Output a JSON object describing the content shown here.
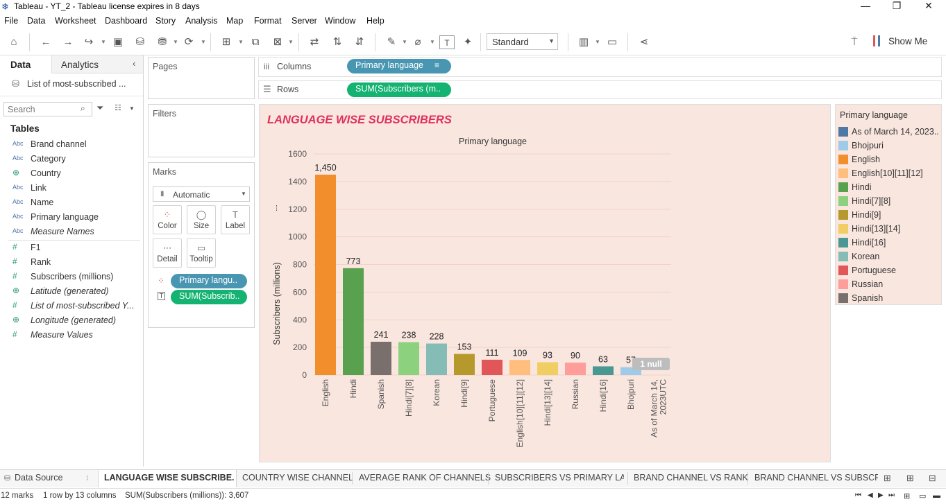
{
  "window": {
    "title": "Tableau - YT_2 - Tableau license expires in 8 days",
    "minimize": "—",
    "restore": "❐",
    "close": "✕"
  },
  "menu": [
    "File",
    "Data",
    "Worksheet",
    "Dashboard",
    "Story",
    "Analysis",
    "Map",
    "Format",
    "Server",
    "Window",
    "Help"
  ],
  "toolbar": {
    "fit": "Standard",
    "show_me": "Show Me"
  },
  "left": {
    "tab_data": "Data",
    "tab_analytics": "Analytics",
    "datasource": "List of most-subscribed ...",
    "search_placeholder": "Search",
    "tables_label": "Tables",
    "dimensions": [
      {
        "type": "Abc",
        "name": "Brand channel",
        "italic": false
      },
      {
        "type": "Abc",
        "name": "Category",
        "italic": false
      },
      {
        "type": "geo",
        "name": "Country",
        "italic": false
      },
      {
        "type": "Abc",
        "name": "Link",
        "italic": false
      },
      {
        "type": "Abc",
        "name": "Name",
        "italic": false
      },
      {
        "type": "Abc",
        "name": "Primary language",
        "italic": false
      },
      {
        "type": "Abc",
        "name": "Measure Names",
        "italic": true
      }
    ],
    "measures": [
      {
        "type": "#",
        "name": "F1",
        "italic": false
      },
      {
        "type": "#",
        "name": "Rank",
        "italic": false
      },
      {
        "type": "#",
        "name": "Subscribers (millions)",
        "italic": false
      },
      {
        "type": "geo",
        "name": "Latitude (generated)",
        "italic": true
      },
      {
        "type": "#",
        "name": "List of most-subscribed Y...",
        "italic": true
      },
      {
        "type": "geo",
        "name": "Longitude (generated)",
        "italic": true
      },
      {
        "type": "#",
        "name": "Measure Values",
        "italic": true
      }
    ]
  },
  "shelves": {
    "pages": "Pages",
    "filters": "Filters",
    "marks": "Marks",
    "mark_type": "Automatic",
    "mark_buttons": {
      "color": "Color",
      "size": "Size",
      "label": "Label",
      "detail": "Detail",
      "tooltip": "Tooltip"
    },
    "mark_pills": {
      "color": "Primary langu..",
      "label": "SUM(Subscrib.."
    },
    "columns_label": "Columns",
    "rows_label": "Rows",
    "columns_pill": "Primary language",
    "rows_pill": "SUM(Subscribers (m.."
  },
  "chart_data": {
    "type": "bar",
    "title": "LANGUAGE WISE SUBSCRIBERS",
    "header": "Primary language",
    "ylabel": "Subscribers (millions)",
    "ylim": [
      0,
      1600
    ],
    "yticks": [
      0,
      200,
      400,
      600,
      800,
      1000,
      1200,
      1400,
      1600
    ],
    "categories": [
      "English",
      "Hindi",
      "Spanish",
      "Hindi[7][8]",
      "Korean",
      "Hindi[9]",
      "Portuguese",
      "English[10][11][12]",
      "Hindi[13][14]",
      "Russian",
      "Hindi[16]",
      "Bhojpuri",
      "As of March 14, 2023UTC"
    ],
    "category_lines": [
      [
        "English"
      ],
      [
        "Hindi"
      ],
      [
        "Spanish"
      ],
      [
        "Hindi[7][8]"
      ],
      [
        "Korean"
      ],
      [
        "Hindi[9]"
      ],
      [
        "Portuguese"
      ],
      [
        "English[10][11][12]"
      ],
      [
        "Hindi[13][14]"
      ],
      [
        "Russian"
      ],
      [
        "Hindi[16]"
      ],
      [
        "Bhojpuri"
      ],
      [
        "As of March 14,",
        "2023UTC"
      ]
    ],
    "values": [
      1450,
      773,
      241,
      238,
      228,
      153,
      111,
      109,
      93,
      90,
      63,
      57,
      null
    ],
    "labels": [
      "1,450",
      "773",
      "241",
      "238",
      "228",
      "153",
      "111",
      "109",
      "93",
      "90",
      "63",
      "57",
      ""
    ],
    "colors": [
      "#f28e2b",
      "#59a14f",
      "#79706e",
      "#8cd17d",
      "#86bcb6",
      "#b6992d",
      "#e15759",
      "#ffbe7d",
      "#f1ce63",
      "#ff9d9a",
      "#499894",
      "#a0cbe8",
      "#4e79a7"
    ],
    "null_indicator": "1 null",
    "grid": true
  },
  "legend": {
    "title": "Primary language",
    "items": [
      {
        "label": "As of March 14, 2023..",
        "color": "#4e79a7"
      },
      {
        "label": "Bhojpuri",
        "color": "#a0cbe8"
      },
      {
        "label": "English",
        "color": "#f28e2b"
      },
      {
        "label": "English[10][11][12]",
        "color": "#ffbe7d"
      },
      {
        "label": "Hindi",
        "color": "#59a14f"
      },
      {
        "label": "Hindi[7][8]",
        "color": "#8cd17d"
      },
      {
        "label": "Hindi[9]",
        "color": "#b6992d"
      },
      {
        "label": "Hindi[13][14]",
        "color": "#f1ce63"
      },
      {
        "label": "Hindi[16]",
        "color": "#499894"
      },
      {
        "label": "Korean",
        "color": "#86bcb6"
      },
      {
        "label": "Portuguese",
        "color": "#e15759"
      },
      {
        "label": "Russian",
        "color": "#ff9d9a"
      },
      {
        "label": "Spanish",
        "color": "#79706e"
      }
    ]
  },
  "sheet_tabs": {
    "datasource": "Data Source",
    "tabs": [
      "LANGUAGE WISE SUBSCRIBE...",
      "COUNTRY WISE CHANNEL",
      "AVERAGE RANK OF CHANNELS",
      "SUBSCRIBERS VS PRIMARY LA...",
      "BRAND CHANNEL VS RANK",
      "BRAND CHANNEL VS SUBSCRI..."
    ]
  },
  "status": {
    "marks": "12 marks",
    "dims": "1 row by 13 columns",
    "sum": "SUM(Subscribers (millions)): 3,607"
  }
}
